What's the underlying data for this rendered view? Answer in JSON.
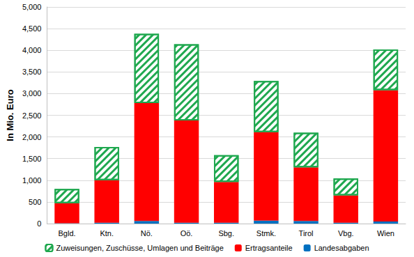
{
  "chart_data": {
    "type": "bar",
    "y_label": "In Mio. Euro",
    "categories": [
      "Bgld.",
      "Ktn.",
      "Nö.",
      "Oö.",
      "Sbg.",
      "Stmk.",
      "Tirol",
      "Vbg.",
      "Wien"
    ],
    "series": [
      {
        "name": "Landesabgaben",
        "color": "#0070c0",
        "values": [
          10,
          20,
          60,
          20,
          20,
          70,
          60,
          20,
          50
        ]
      },
      {
        "name": "Ertragsanteile",
        "color": "#ff0000",
        "values": [
          460,
          980,
          2720,
          2360,
          940,
          2040,
          1240,
          630,
          3030
        ]
      },
      {
        "name": "Zuweisungen, Zuschüsse, Umlagen und Beiträge",
        "color": "#1fa84f",
        "values": [
          330,
          770,
          1600,
          1760,
          620,
          1180,
          800,
          390,
          940
        ],
        "marker": "hatched"
      }
    ],
    "stacked": true,
    "ylim": [
      0,
      5000
    ],
    "yticks": [
      0,
      500,
      1000,
      1500,
      2000,
      2500,
      3000,
      3500,
      4000,
      4500,
      5000
    ],
    "grid": true,
    "legend": "bottom"
  }
}
